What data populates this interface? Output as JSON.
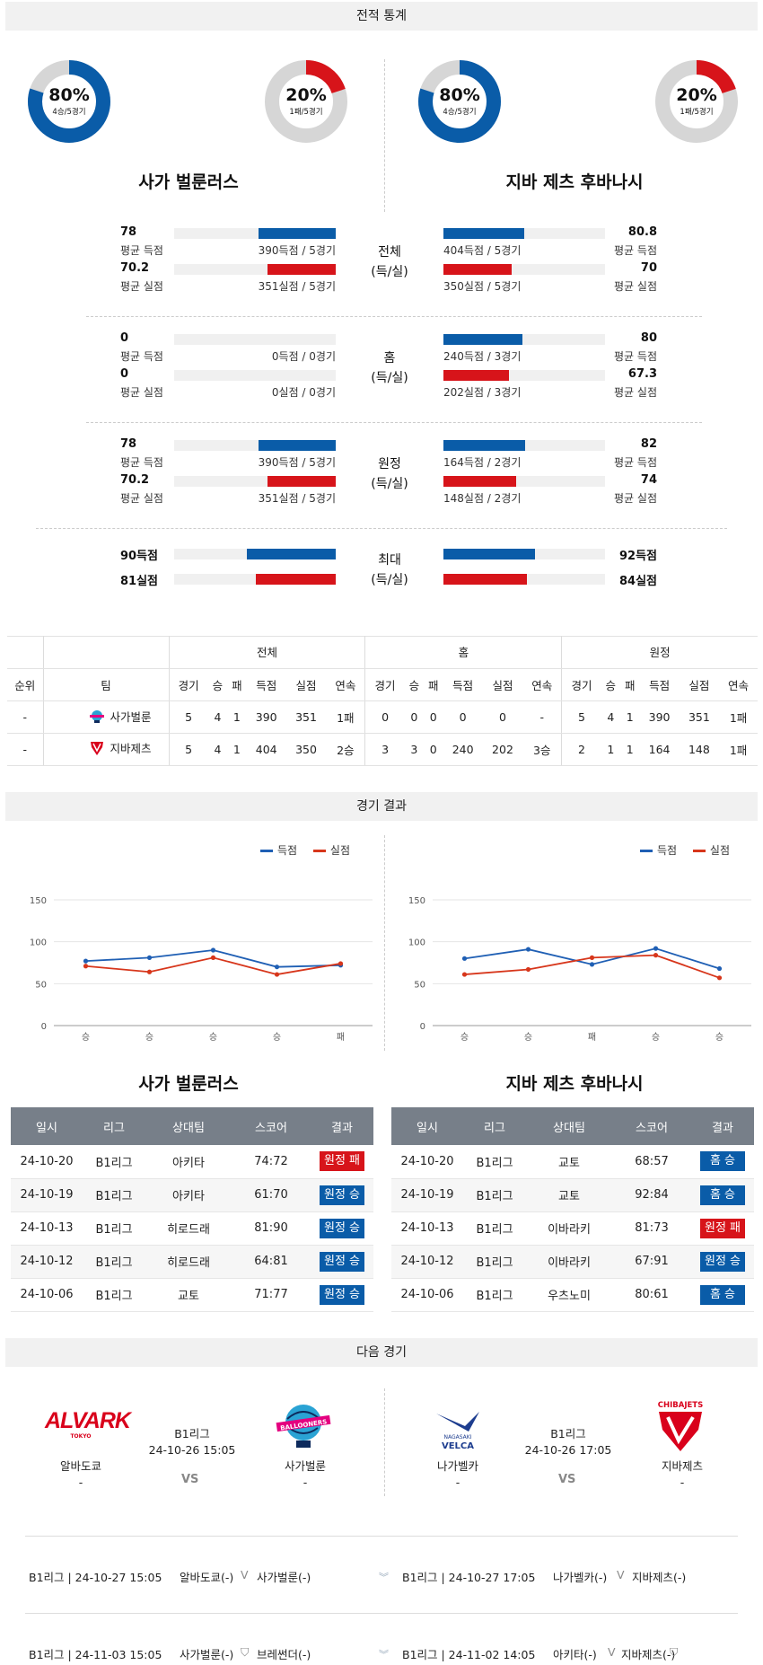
{
  "sections": {
    "stats": "전적 통계",
    "results": "경기 결과",
    "next": "다음 경기"
  },
  "teams": {
    "left": "사가 벌룬러스",
    "right": "지바 제츠 후바나시"
  },
  "donuts": [
    {
      "pct": "80%",
      "sub": "4승/5경기",
      "value": 0.8,
      "color": "#0a5ca8"
    },
    {
      "pct": "20%",
      "sub": "1패/5경기",
      "value": 0.2,
      "color": "#d7141a"
    },
    {
      "pct": "80%",
      "sub": "4승/5경기",
      "value": 0.8,
      "color": "#0a5ca8"
    },
    {
      "pct": "20%",
      "sub": "1패/5경기",
      "value": 0.2,
      "color": "#d7141a"
    }
  ],
  "stat_groups": [
    {
      "cat1": "전체",
      "cat2": "(득/실)",
      "left": [
        {
          "val": "78",
          "label": "평균 득점",
          "total": "390득점 / 5경기",
          "ratio": 0.465
        },
        {
          "val": "70.2",
          "label": "평균 실점",
          "total": "351실점 / 5경기",
          "ratio": 0.41
        }
      ],
      "right": [
        {
          "val": "80.8",
          "label": "평균 득점",
          "total": "404득점 / 5경기",
          "ratio": 0.485
        },
        {
          "val": "70",
          "label": "평균 실점",
          "total": "350실점 / 5경기",
          "ratio": 0.41
        }
      ]
    },
    {
      "cat1": "홈",
      "cat2": "(득/실)",
      "left": [
        {
          "val": "0",
          "label": "평균 득점",
          "total": "0득점 / 0경기",
          "ratio": 0
        },
        {
          "val": "0",
          "label": "평균 실점",
          "total": "0실점 / 0경기",
          "ratio": 0
        }
      ],
      "right": [
        {
          "val": "80",
          "label": "평균 득점",
          "total": "240득점 / 3경기",
          "ratio": 0.475
        },
        {
          "val": "67.3",
          "label": "평균 실점",
          "total": "202실점 / 3경기",
          "ratio": 0.395
        }
      ]
    },
    {
      "cat1": "원정",
      "cat2": "(득/실)",
      "left": [
        {
          "val": "78",
          "label": "평균 득점",
          "total": "390득점 / 5경기",
          "ratio": 0.465
        },
        {
          "val": "70.2",
          "label": "평균 실점",
          "total": "351실점 / 5경기",
          "ratio": 0.41
        }
      ],
      "right": [
        {
          "val": "82",
          "label": "평균 득점",
          "total": "164득점 / 2경기",
          "ratio": 0.49
        },
        {
          "val": "74",
          "label": "평균 실점",
          "total": "148실점 / 2경기",
          "ratio": 0.44
        }
      ]
    }
  ],
  "max_group": {
    "cat1": "최대",
    "cat2": "(득/실)",
    "left": [
      {
        "val": "90득점",
        "ratio": 0.535
      },
      {
        "val": "81실점",
        "ratio": 0.48
      }
    ],
    "right": [
      {
        "val": "92득점",
        "ratio": 0.55
      },
      {
        "val": "84실점",
        "ratio": 0.5
      }
    ]
  },
  "standings": {
    "groups": [
      "전체",
      "홈",
      "원정"
    ],
    "cols": [
      "순위",
      "팀",
      "경기",
      "승",
      "패",
      "득점",
      "실점",
      "연속"
    ],
    "rows": [
      {
        "rank": "-",
        "team": "사가벌룬",
        "cells": [
          "5",
          "4",
          "1",
          "390",
          "351",
          "1패",
          "0",
          "0",
          "0",
          "0",
          "0",
          "-",
          "5",
          "4",
          "1",
          "390",
          "351",
          "1패"
        ]
      },
      {
        "rank": "-",
        "team": "지바제츠",
        "cells": [
          "5",
          "4",
          "1",
          "404",
          "350",
          "2승",
          "3",
          "3",
          "0",
          "240",
          "202",
          "3승",
          "2",
          "1",
          "1",
          "164",
          "148",
          "1패"
        ]
      }
    ]
  },
  "charts": [
    {
      "type": "line",
      "title": "사가 벌룬러스",
      "categories": [
        "승",
        "승",
        "승",
        "승",
        "패"
      ],
      "series": [
        {
          "name": "득점",
          "color": "#1f5fb4",
          "values": [
            77,
            81,
            90,
            70,
            72
          ]
        },
        {
          "name": "실점",
          "color": "#d7361b",
          "values": [
            71,
            64,
            81,
            61,
            74
          ]
        }
      ],
      "ylim": [
        0,
        150
      ],
      "yticks": [
        "0",
        "50",
        "100",
        "150"
      ],
      "legend": "top-right"
    },
    {
      "type": "line",
      "title": "지바 제츠 후바나시",
      "categories": [
        "승",
        "승",
        "패",
        "승",
        "승"
      ],
      "series": [
        {
          "name": "득점",
          "color": "#1f5fb4",
          "values": [
            80,
            91,
            73,
            92,
            68
          ]
        },
        {
          "name": "실점",
          "color": "#d7361b",
          "values": [
            61,
            67,
            81,
            84,
            57
          ]
        }
      ],
      "ylim": [
        0,
        150
      ],
      "yticks": [
        "0",
        "50",
        "100",
        "150"
      ],
      "legend": "top-right"
    }
  ],
  "results_headers": [
    "일시",
    "리그",
    "상대팀",
    "스코어",
    "결과"
  ],
  "results_left": [
    {
      "date": "24-10-20",
      "league": "B1리그",
      "opp": "아키타",
      "score": "74:72",
      "result": "원정 패",
      "color": "red"
    },
    {
      "date": "24-10-19",
      "league": "B1리그",
      "opp": "아키타",
      "score": "61:70",
      "result": "원정 승",
      "color": "blue"
    },
    {
      "date": "24-10-13",
      "league": "B1리그",
      "opp": "히로드래",
      "score": "81:90",
      "result": "원정 승",
      "color": "blue"
    },
    {
      "date": "24-10-12",
      "league": "B1리그",
      "opp": "히로드래",
      "score": "64:81",
      "result": "원정 승",
      "color": "blue"
    },
    {
      "date": "24-10-06",
      "league": "B1리그",
      "opp": "교토",
      "score": "71:77",
      "result": "원정 승",
      "color": "blue"
    }
  ],
  "results_right": [
    {
      "date": "24-10-20",
      "league": "B1리그",
      "opp": "교토",
      "score": "68:57",
      "result": "홈 승",
      "color": "blue"
    },
    {
      "date": "24-10-19",
      "league": "B1리그",
      "opp": "교토",
      "score": "92:84",
      "result": "홈 승",
      "color": "blue"
    },
    {
      "date": "24-10-13",
      "league": "B1리그",
      "opp": "이바라키",
      "score": "81:73",
      "result": "원정 패",
      "color": "red"
    },
    {
      "date": "24-10-12",
      "league": "B1리그",
      "opp": "이바라키",
      "score": "67:91",
      "result": "원정 승",
      "color": "blue"
    },
    {
      "date": "24-10-06",
      "league": "B1리그",
      "opp": "우츠노미",
      "score": "80:61",
      "result": "홈 승",
      "color": "blue"
    }
  ],
  "next_games": [
    {
      "league": "B1리그",
      "datetime": "24-10-26 15:05",
      "home": "알바도쿄",
      "away": "사가벌룬",
      "home_dash": "-",
      "away_dash": "-",
      "vs": "VS",
      "home_logo": "ALVARK",
      "home_logo_sub": "TOKYO",
      "away_logo": "BALLOONERS"
    },
    {
      "league": "B1리그",
      "datetime": "24-10-26 17:05",
      "home": "나가벨카",
      "away": "지바제츠",
      "home_dash": "-",
      "away_dash": "-",
      "vs": "VS",
      "home_logo": "VELCA",
      "home_logo_sub": "NAGASAKI",
      "away_logo": "CHIBAJETS"
    }
  ],
  "fixtures": [
    {
      "left": {
        "info": "B1리그 | 24-10-27 15:05",
        "home": "알바도쿄(-)",
        "away": "사가벌룬(-)"
      },
      "right": {
        "info": "B1리그 | 24-10-27 17:05",
        "home": "나가벨카(-)",
        "away": "지바제츠(-)"
      }
    },
    {
      "left": {
        "info": "B1리그 | 24-11-03 15:05",
        "home": "사가벌룬(-)",
        "away": "브레썬더(-)"
      },
      "right": {
        "info": "B1리그 | 24-11-02 14:05",
        "home": "아키타(-)",
        "away": "지바제츠(-)"
      }
    }
  ]
}
